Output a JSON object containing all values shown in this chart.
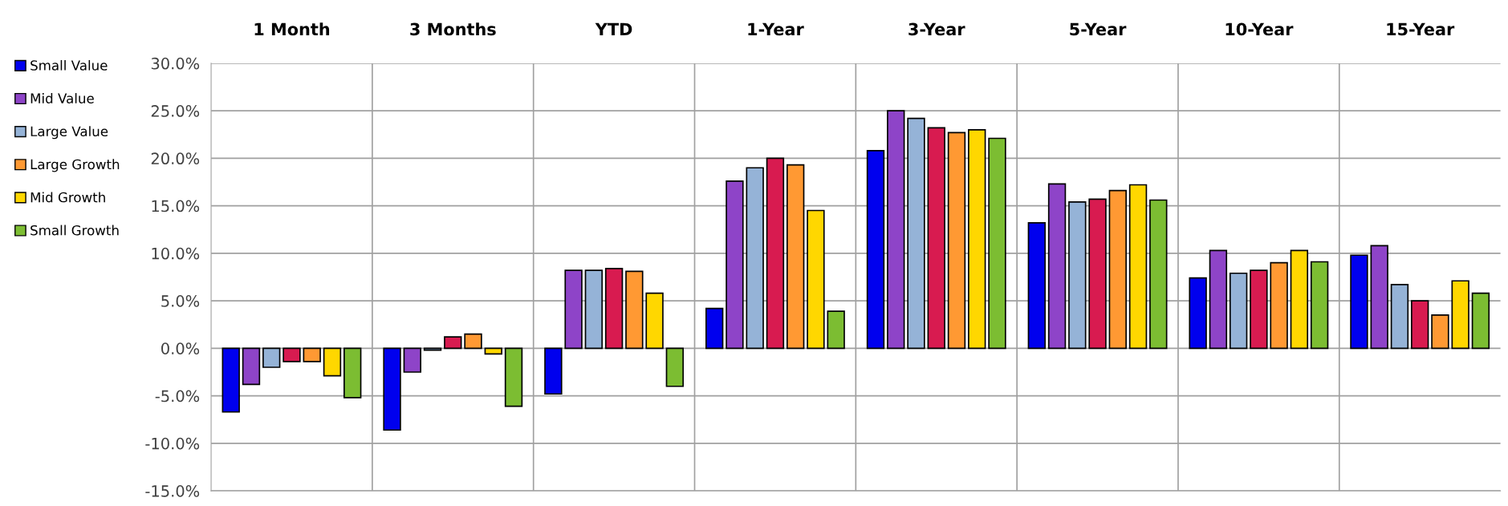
{
  "chart_data": {
    "type": "bar",
    "categories": [
      "1 Month",
      "3 Months",
      "YTD",
      "1-Year",
      "3-Year",
      "5-Year",
      "10-Year",
      "15-Year"
    ],
    "series": [
      {
        "name": "Small Value",
        "color": "#0000ee",
        "values": [
          -6.7,
          -8.6,
          -4.8,
          4.2,
          20.8,
          13.2,
          7.4,
          9.8
        ]
      },
      {
        "name": "Mid Value",
        "color": "#8e44c8",
        "values": [
          -3.8,
          -2.5,
          8.2,
          17.6,
          25.0,
          17.3,
          10.3,
          10.8
        ]
      },
      {
        "name": "Large Value",
        "color": "#95b3d7",
        "values": [
          -2.0,
          -0.2,
          8.2,
          19.0,
          24.2,
          15.4,
          7.9,
          6.7
        ]
      },
      {
        "color": "#d81b50",
        "values": [
          -1.4,
          1.2,
          8.4,
          20.0,
          23.2,
          15.7,
          8.2,
          5.0
        ]
      },
      {
        "name": "Large Growth",
        "color": "#ff9933",
        "values": [
          -1.4,
          1.5,
          8.1,
          19.3,
          22.7,
          16.6,
          9.0,
          3.5
        ]
      },
      {
        "name": "Mid Growth",
        "color": "#ffd700",
        "values": [
          -2.9,
          -0.6,
          5.8,
          14.5,
          23.0,
          17.2,
          10.3,
          7.1
        ]
      },
      {
        "name": "Small Growth",
        "color": "#7cbd32",
        "values": [
          -5.2,
          -6.1,
          -4.0,
          3.9,
          22.1,
          15.6,
          9.1,
          5.8
        ]
      }
    ],
    "ylim": [
      -15,
      30
    ],
    "yticks": [
      {
        "value": -15,
        "label": "-15.0%"
      },
      {
        "value": -10,
        "label": "-10.0%"
      },
      {
        "value": -5,
        "label": "-5.0%"
      },
      {
        "value": 0,
        "label": "0.0%"
      },
      {
        "value": 5,
        "label": "5.0%"
      },
      {
        "value": 10,
        "label": "10.0%"
      },
      {
        "value": 15,
        "label": "15.0%"
      },
      {
        "value": 20,
        "label": "20.0%"
      },
      {
        "value": 25,
        "label": "25.0%"
      },
      {
        "value": 30,
        "label": "30.0%"
      }
    ],
    "grid": true,
    "legend": "left"
  }
}
